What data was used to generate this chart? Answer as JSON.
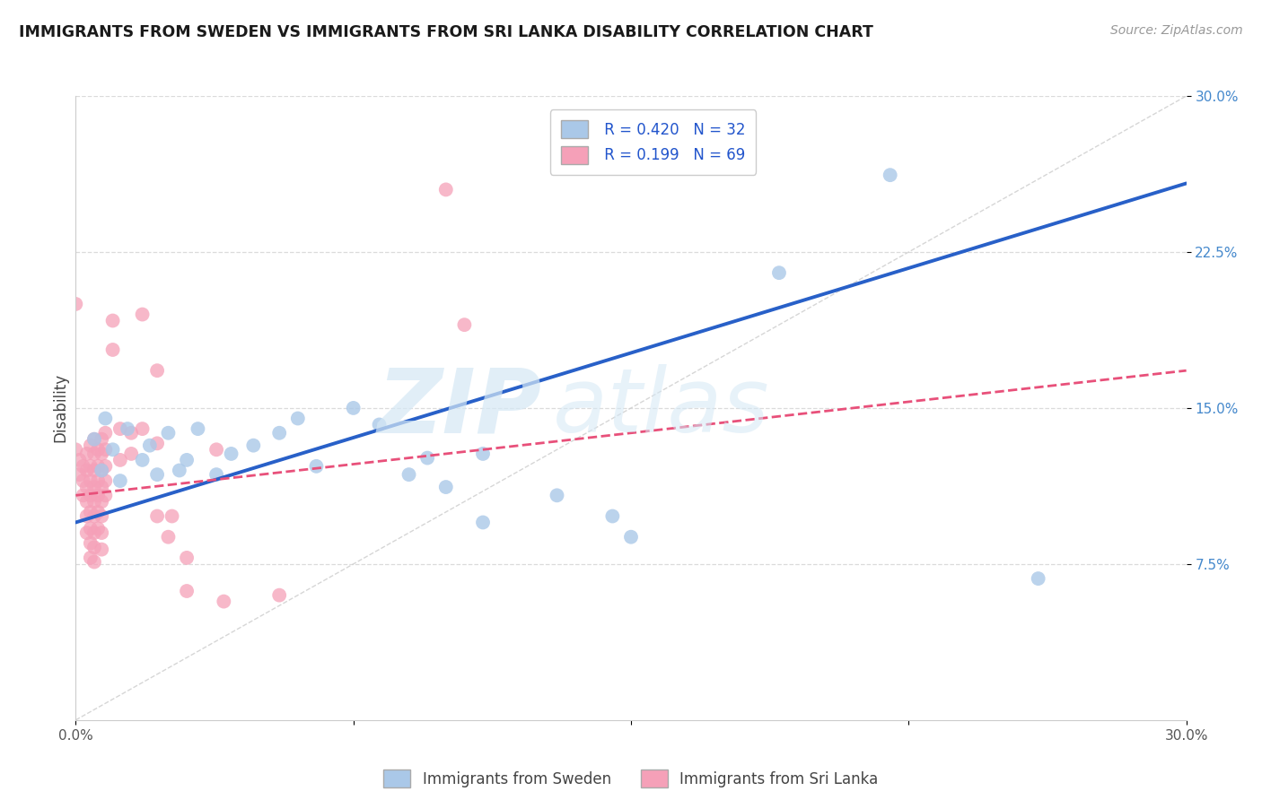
{
  "title": "IMMIGRANTS FROM SWEDEN VS IMMIGRANTS FROM SRI LANKA DISABILITY CORRELATION CHART",
  "source": "Source: ZipAtlas.com",
  "ylabel": "Disability",
  "xlim": [
    0.0,
    0.3
  ],
  "ylim": [
    0.0,
    0.3
  ],
  "xtick_labels": [
    "0.0%",
    "",
    "",
    "",
    "30.0%"
  ],
  "xtick_vals": [
    0.0,
    0.075,
    0.15,
    0.225,
    0.3
  ],
  "ytick_labels": [
    "7.5%",
    "15.0%",
    "22.5%",
    "30.0%"
  ],
  "ytick_vals": [
    0.075,
    0.15,
    0.225,
    0.3
  ],
  "sweden_color": "#aac8e8",
  "sri_lanka_color": "#f5a0b8",
  "sweden_line_color": "#2860c8",
  "sri_lanka_line_color": "#e8507a",
  "diagonal_color": "#cccccc",
  "R_sweden": 0.42,
  "N_sweden": 32,
  "R_sri_lanka": 0.199,
  "N_sri_lanka": 69,
  "sweden_scatter": [
    [
      0.005,
      0.135
    ],
    [
      0.007,
      0.12
    ],
    [
      0.008,
      0.145
    ],
    [
      0.01,
      0.13
    ],
    [
      0.012,
      0.115
    ],
    [
      0.014,
      0.14
    ],
    [
      0.018,
      0.125
    ],
    [
      0.02,
      0.132
    ],
    [
      0.022,
      0.118
    ],
    [
      0.025,
      0.138
    ],
    [
      0.028,
      0.12
    ],
    [
      0.03,
      0.125
    ],
    [
      0.033,
      0.14
    ],
    [
      0.038,
      0.118
    ],
    [
      0.042,
      0.128
    ],
    [
      0.048,
      0.132
    ],
    [
      0.055,
      0.138
    ],
    [
      0.06,
      0.145
    ],
    [
      0.065,
      0.122
    ],
    [
      0.075,
      0.15
    ],
    [
      0.082,
      0.142
    ],
    [
      0.09,
      0.118
    ],
    [
      0.095,
      0.126
    ],
    [
      0.1,
      0.112
    ],
    [
      0.11,
      0.128
    ],
    [
      0.13,
      0.108
    ],
    [
      0.145,
      0.098
    ],
    [
      0.15,
      0.088
    ],
    [
      0.19,
      0.215
    ],
    [
      0.22,
      0.262
    ],
    [
      0.11,
      0.095
    ],
    [
      0.26,
      0.068
    ]
  ],
  "sri_lanka_scatter": [
    [
      0.0,
      0.2
    ],
    [
      0.0,
      0.13
    ],
    [
      0.001,
      0.125
    ],
    [
      0.001,
      0.118
    ],
    [
      0.002,
      0.122
    ],
    [
      0.002,
      0.115
    ],
    [
      0.002,
      0.108
    ],
    [
      0.003,
      0.128
    ],
    [
      0.003,
      0.12
    ],
    [
      0.003,
      0.112
    ],
    [
      0.003,
      0.105
    ],
    [
      0.003,
      0.098
    ],
    [
      0.003,
      0.09
    ],
    [
      0.004,
      0.132
    ],
    [
      0.004,
      0.122
    ],
    [
      0.004,
      0.115
    ],
    [
      0.004,
      0.108
    ],
    [
      0.004,
      0.1
    ],
    [
      0.004,
      0.092
    ],
    [
      0.004,
      0.085
    ],
    [
      0.004,
      0.078
    ],
    [
      0.005,
      0.135
    ],
    [
      0.005,
      0.128
    ],
    [
      0.005,
      0.12
    ],
    [
      0.005,
      0.112
    ],
    [
      0.005,
      0.105
    ],
    [
      0.005,
      0.098
    ],
    [
      0.005,
      0.09
    ],
    [
      0.005,
      0.083
    ],
    [
      0.005,
      0.076
    ],
    [
      0.006,
      0.13
    ],
    [
      0.006,
      0.122
    ],
    [
      0.006,
      0.115
    ],
    [
      0.006,
      0.108
    ],
    [
      0.006,
      0.1
    ],
    [
      0.006,
      0.092
    ],
    [
      0.007,
      0.135
    ],
    [
      0.007,
      0.128
    ],
    [
      0.007,
      0.12
    ],
    [
      0.007,
      0.112
    ],
    [
      0.007,
      0.105
    ],
    [
      0.007,
      0.098
    ],
    [
      0.007,
      0.09
    ],
    [
      0.007,
      0.082
    ],
    [
      0.008,
      0.138
    ],
    [
      0.008,
      0.13
    ],
    [
      0.008,
      0.122
    ],
    [
      0.008,
      0.115
    ],
    [
      0.008,
      0.108
    ],
    [
      0.01,
      0.192
    ],
    [
      0.01,
      0.178
    ],
    [
      0.012,
      0.14
    ],
    [
      0.012,
      0.125
    ],
    [
      0.015,
      0.138
    ],
    [
      0.015,
      0.128
    ],
    [
      0.018,
      0.195
    ],
    [
      0.018,
      0.14
    ],
    [
      0.022,
      0.168
    ],
    [
      0.022,
      0.133
    ],
    [
      0.022,
      0.098
    ],
    [
      0.025,
      0.088
    ],
    [
      0.026,
      0.098
    ],
    [
      0.03,
      0.062
    ],
    [
      0.03,
      0.078
    ],
    [
      0.038,
      0.13
    ],
    [
      0.04,
      0.057
    ],
    [
      0.055,
      0.06
    ],
    [
      0.1,
      0.255
    ],
    [
      0.105,
      0.19
    ]
  ],
  "sweden_line_x": [
    0.0,
    0.3
  ],
  "sweden_line_y": [
    0.095,
    0.258
  ],
  "sri_lanka_line_x": [
    0.0,
    0.3
  ],
  "sri_lanka_line_y": [
    0.108,
    0.168
  ],
  "watermark_zip": "ZIP",
  "watermark_atlas": "atlas",
  "background_color": "#ffffff",
  "grid_color": "#d8d8d8"
}
